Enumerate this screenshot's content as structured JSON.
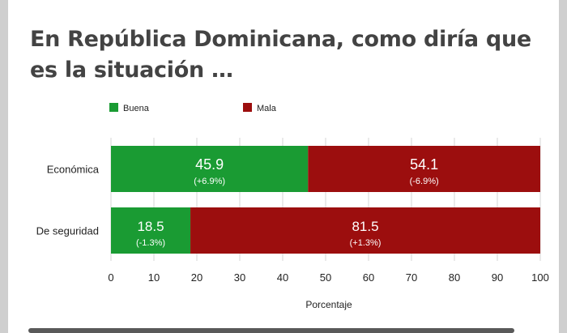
{
  "chart_data": {
    "type": "bar",
    "orientation": "horizontal",
    "stacked": true,
    "title": "En República Dominicana, como diría que es la situación …",
    "categories": [
      "Económica",
      "De seguridad"
    ],
    "series": [
      {
        "name": "Buena",
        "color": "#1a9b33",
        "values": [
          45.9,
          18.5
        ],
        "labels": [
          "45.9",
          "18.5"
        ],
        "changes": [
          "(+6.9%)",
          "(-1.3%)"
        ]
      },
      {
        "name": "Mala",
        "color": "#9c0e0e",
        "values": [
          54.1,
          81.5
        ],
        "labels": [
          "54.1",
          "81.5"
        ],
        "changes": [
          "(-6.9%)",
          "(+1.3%)"
        ]
      }
    ],
    "xlabel": "Porcentaje",
    "ylabel": "",
    "xlim": [
      0,
      100
    ],
    "xticks": [
      "0",
      "10",
      "20",
      "30",
      "40",
      "50",
      "60",
      "70",
      "80",
      "90",
      "100"
    ],
    "legend": "top-left",
    "grid": true
  }
}
